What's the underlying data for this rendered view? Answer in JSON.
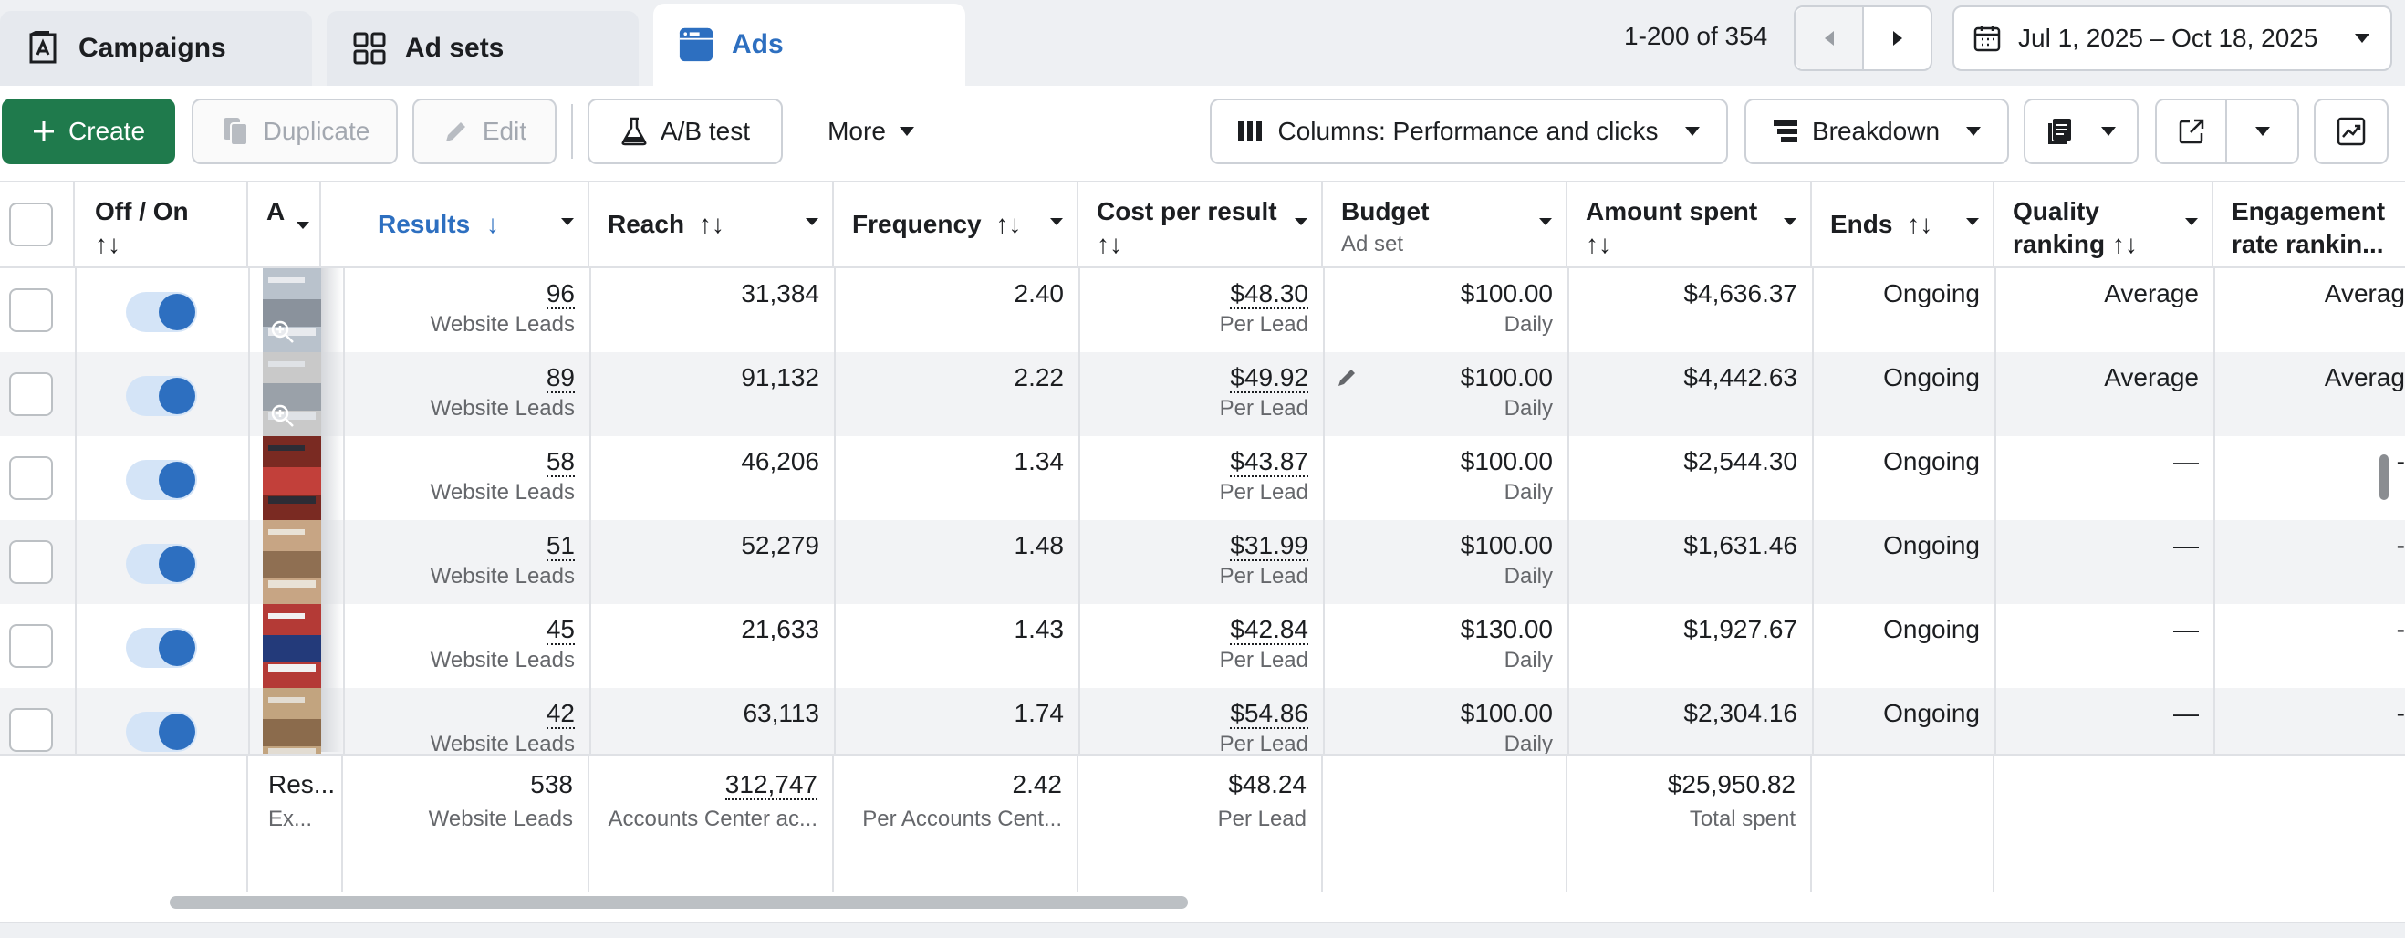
{
  "tabs": [
    {
      "label": "Campaigns",
      "icon": "campaigns-icon"
    },
    {
      "label": "Ad sets",
      "icon": "adsets-grid-icon"
    },
    {
      "label": "Ads",
      "icon": "ads-icon"
    }
  ],
  "active_tab": "Ads",
  "pagination": {
    "text": "1-200 of 354"
  },
  "date_range": "Jul 1, 2025 – Oct 18, 2025",
  "toolbar": {
    "create": "Create",
    "duplicate": "Duplicate",
    "edit": "Edit",
    "ab_test": "A/B test",
    "more": "More",
    "columns": "Columns: Performance and clicks",
    "breakdown": "Breakdown"
  },
  "columns": {
    "off_on": "Off / On",
    "sort_icon": "↑↓",
    "ad_cut": "A",
    "results": "Results",
    "results_sort": "↓",
    "reach": "Reach",
    "frequency": "Frequency",
    "cost_per_result": "Cost per result",
    "budget": "Budget",
    "budget_sub": "Ad set",
    "amount_spent": "Amount spent",
    "ends": "Ends",
    "quality_ranking_1": "Quality",
    "quality_ranking_2": "ranking",
    "engagement_1": "Engagement",
    "engagement_2": "rate rankin..."
  },
  "rows": [
    {
      "results": "96",
      "results_sub": "Website Leads",
      "reach": "31,384",
      "frequency": "2.40",
      "cost": "$48.30",
      "cost_sub": "Per Lead",
      "budget": "$100.00",
      "budget_sub": "Daily",
      "spent": "$4,636.37",
      "ends": "Ongoing",
      "quality": "Average",
      "engagement": "Averag"
    },
    {
      "results": "89",
      "results_sub": "Website Leads",
      "reach": "91,132",
      "frequency": "2.22",
      "cost": "$49.92",
      "cost_sub": "Per Lead",
      "budget": "$100.00",
      "budget_sub": "Daily",
      "spent": "$4,442.63",
      "ends": "Ongoing",
      "quality": "Average",
      "engagement": "Averag"
    },
    {
      "results": "58",
      "results_sub": "Website Leads",
      "reach": "46,206",
      "frequency": "1.34",
      "cost": "$43.87",
      "cost_sub": "Per Lead",
      "budget": "$100.00",
      "budget_sub": "Daily",
      "spent": "$2,544.30",
      "ends": "Ongoing",
      "quality": "—",
      "engagement": "-"
    },
    {
      "results": "51",
      "results_sub": "Website Leads",
      "reach": "52,279",
      "frequency": "1.48",
      "cost": "$31.99",
      "cost_sub": "Per Lead",
      "budget": "$100.00",
      "budget_sub": "Daily",
      "spent": "$1,631.46",
      "ends": "Ongoing",
      "quality": "—",
      "engagement": "-"
    },
    {
      "results": "45",
      "results_sub": "Website Leads",
      "reach": "21,633",
      "frequency": "1.43",
      "cost": "$42.84",
      "cost_sub": "Per Lead",
      "budget": "$130.00",
      "budget_sub": "Daily",
      "spent": "$1,927.67",
      "ends": "Ongoing",
      "quality": "—",
      "engagement": "-"
    },
    {
      "results": "42",
      "results_sub": "Website Leads",
      "reach": "63,113",
      "frequency": "1.74",
      "cost": "$54.86",
      "cost_sub": "Per Lead",
      "budget": "$100.00",
      "budget_sub": "Daily",
      "spent": "$2,304.16",
      "ends": "Ongoing",
      "quality": "—",
      "engagement": "-"
    }
  ],
  "footer": {
    "label": "Res...",
    "label_sub": "Ex...",
    "results": "538",
    "results_sub": "Website Leads",
    "reach": "312,747",
    "reach_sub": "Accounts Center ac...",
    "frequency": "2.42",
    "frequency_sub": "Per Accounts Cent...",
    "cost": "$48.24",
    "cost_sub": "Per Lead",
    "spent": "$25,950.82",
    "spent_sub": "Total spent"
  },
  "colors": {
    "accent": "#2d6fc0",
    "create_green": "#1f7a4c"
  }
}
